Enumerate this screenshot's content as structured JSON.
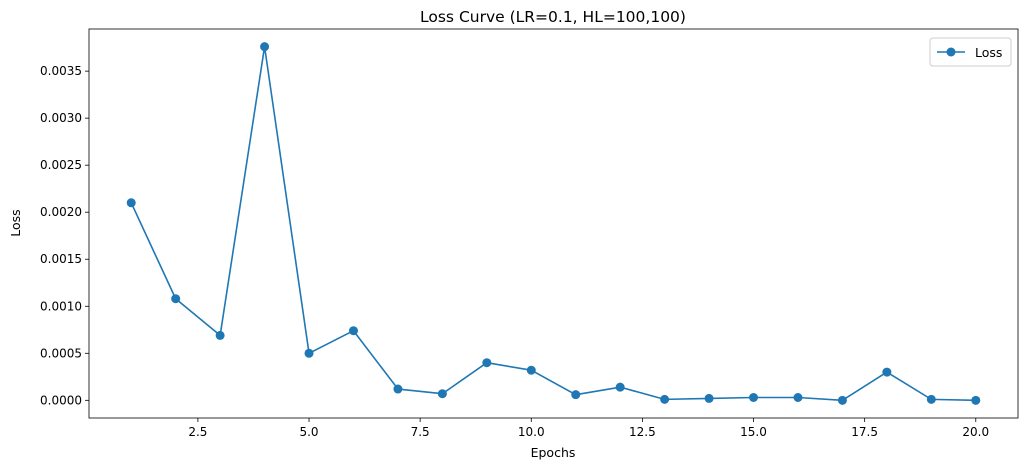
{
  "chart_data": {
    "type": "line",
    "title": "Loss Curve (LR=0.1, HL=100,100)",
    "xlabel": "Epochs",
    "ylabel": "Loss",
    "xlim": [
      0.05,
      20.95
    ],
    "ylim": [
      -0.000188,
      0.003948
    ],
    "xticks": [
      2.5,
      5.0,
      7.5,
      10.0,
      12.5,
      15.0,
      17.5,
      20.0
    ],
    "xtick_labels": [
      "2.5",
      "5.0",
      "7.5",
      "10.0",
      "12.5",
      "15.0",
      "17.5",
      "20.0"
    ],
    "yticks": [
      0.0,
      0.0005,
      0.001,
      0.0015,
      0.002,
      0.0025,
      0.003,
      0.0035
    ],
    "ytick_labels": [
      "0.0000",
      "0.0005",
      "0.0010",
      "0.0015",
      "0.0020",
      "0.0025",
      "0.0030",
      "0.0035"
    ],
    "grid": false,
    "legend_position": "top-right",
    "series": [
      {
        "name": "Loss",
        "color": "#1f77b4",
        "marker": "circle",
        "x": [
          1,
          2,
          3,
          4,
          5,
          6,
          7,
          8,
          9,
          10,
          11,
          12,
          13,
          14,
          15,
          16,
          17,
          18,
          19,
          20
        ],
        "y": [
          0.0021,
          0.00108,
          0.00069,
          0.00376,
          0.0005,
          0.00074,
          0.00012,
          7e-05,
          0.0004,
          0.00032,
          6e-05,
          0.00014,
          1e-05,
          2e-05,
          3e-05,
          3e-05,
          0.0,
          0.0003,
          1e-05,
          0.0
        ]
      }
    ]
  }
}
